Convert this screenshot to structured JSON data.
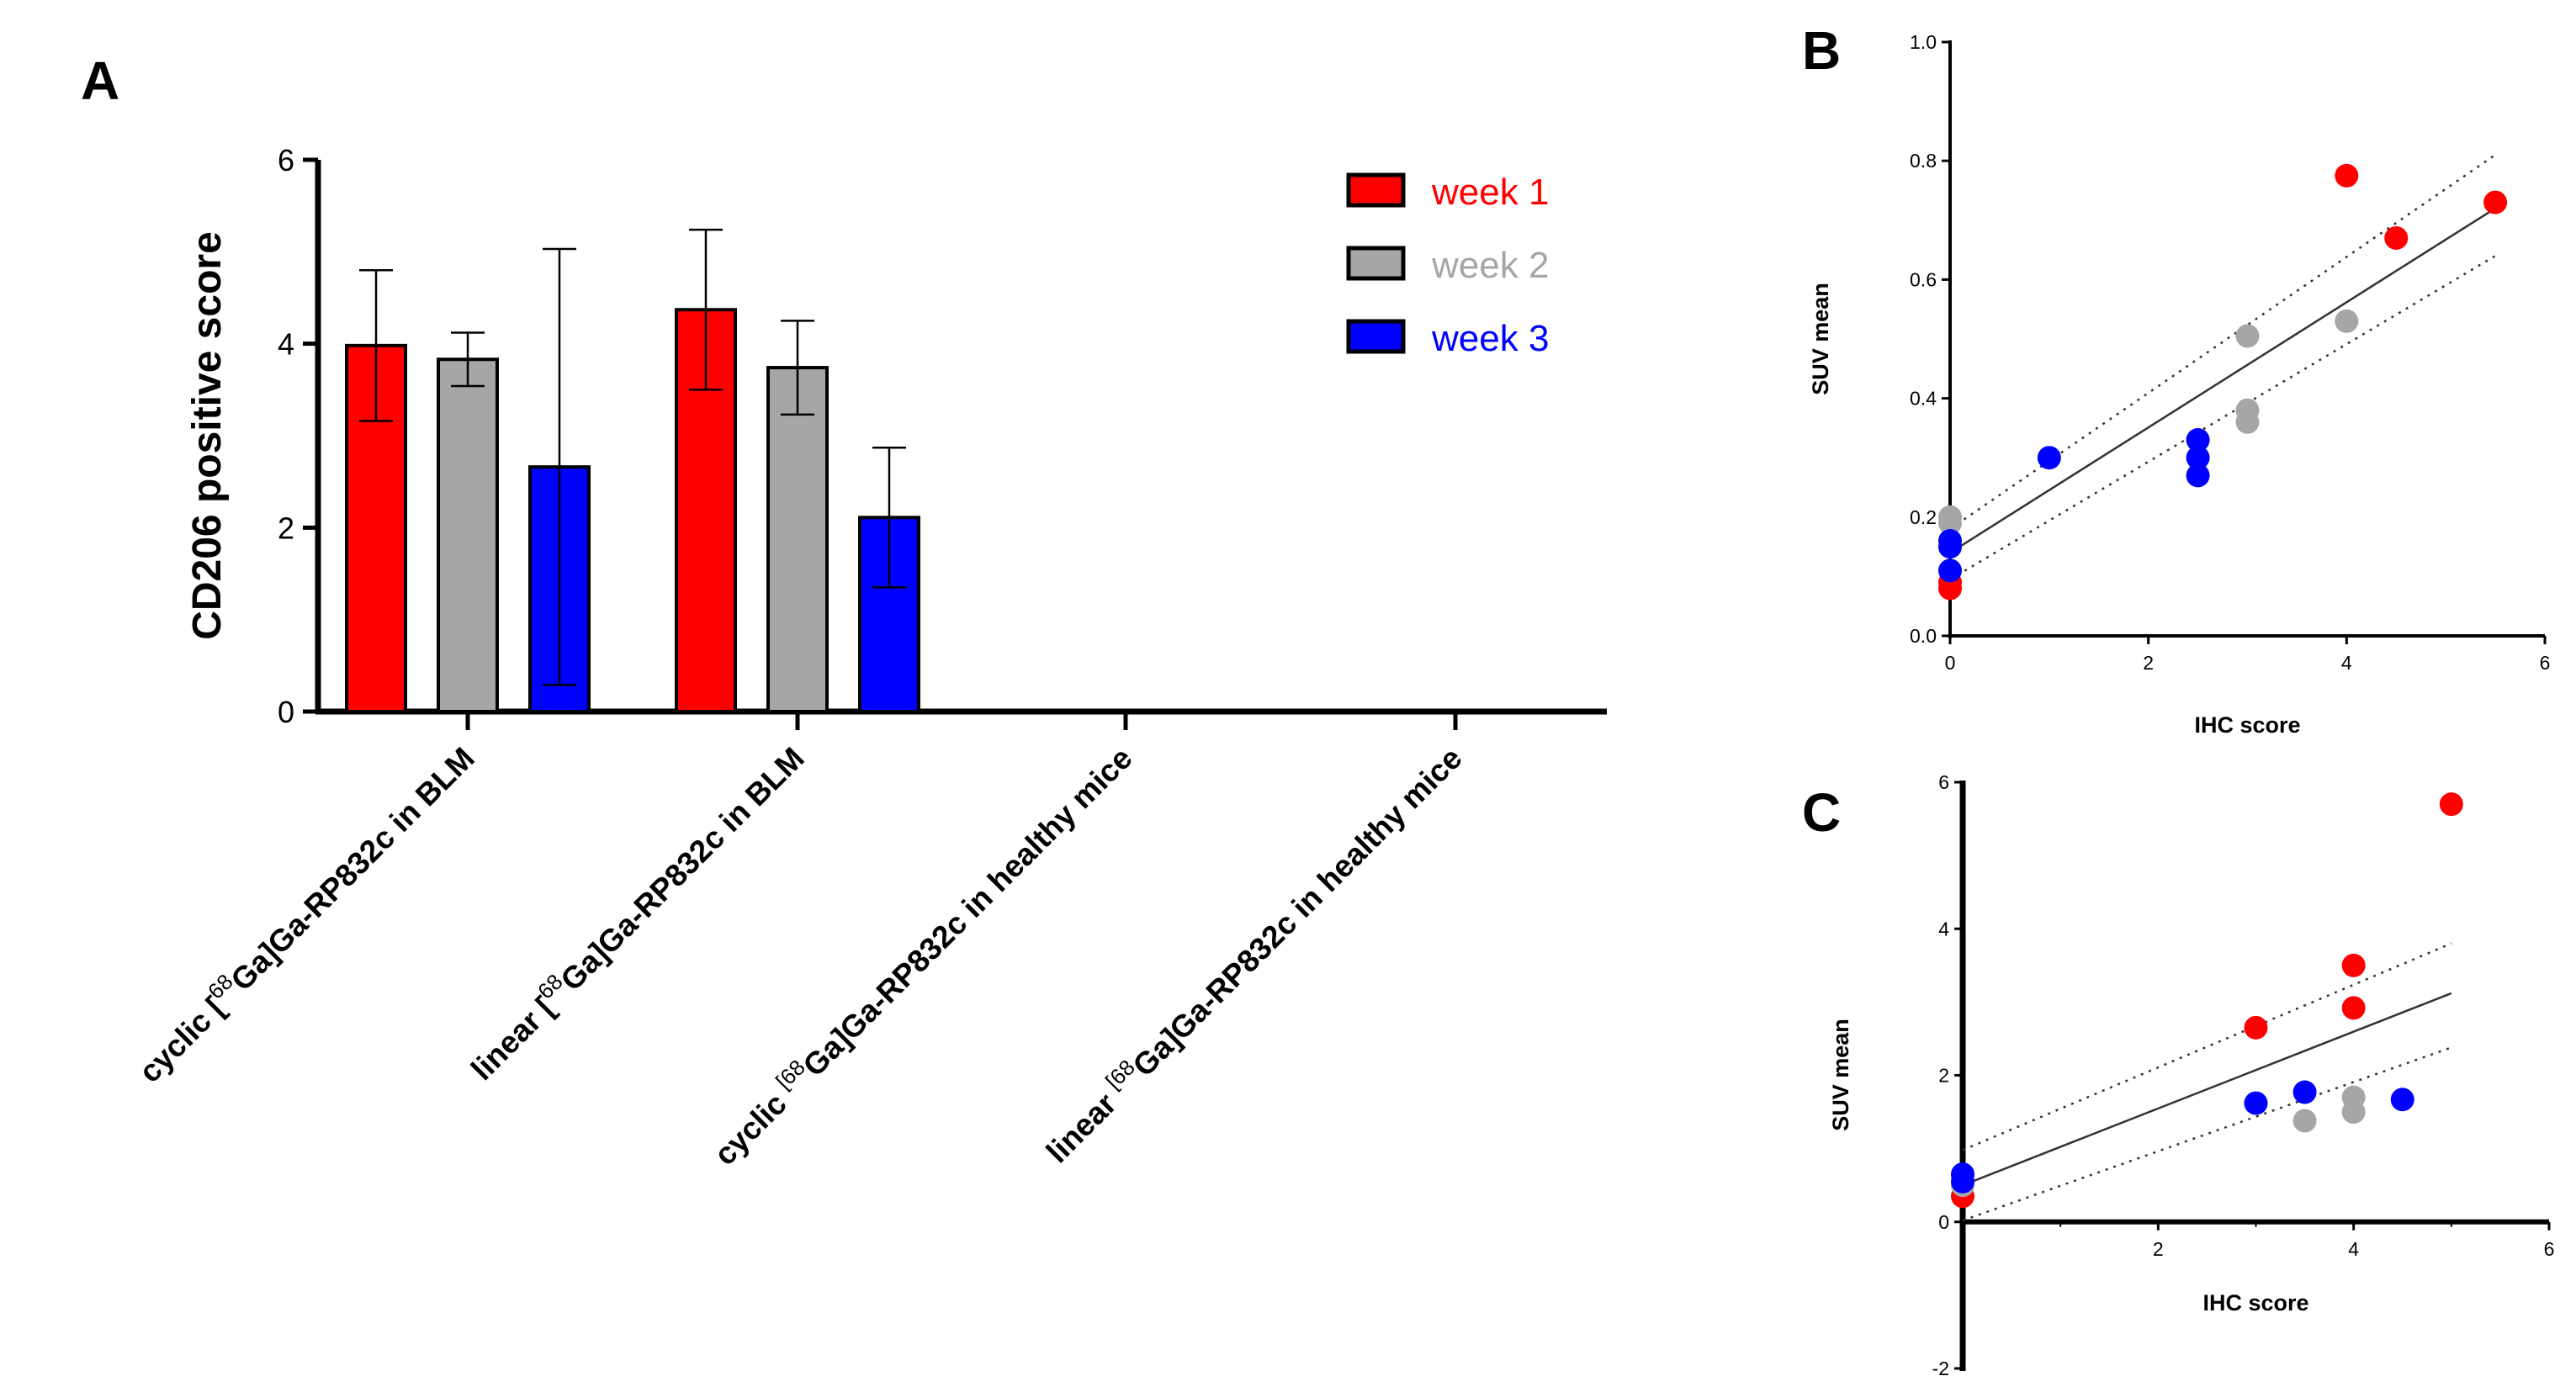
{
  "panel_labels": {
    "a": "A",
    "b": "B",
    "c": "C"
  },
  "chart_data": [
    {
      "type": "bar",
      "panel": "A",
      "ylabel": "CD206 positive score",
      "ylim": [
        0,
        6
      ],
      "yticks": [
        "0",
        "2",
        "4",
        "6"
      ],
      "categories": [
        {
          "prefix": "cyclic  [",
          "sup": "68",
          "suffix": "Ga]Ga-RP832c in BLM"
        },
        {
          "prefix": "linear [",
          "sup": "68",
          "suffix": "Ga]Ga-RP832c in BLM"
        },
        {
          "prefix": "cyclic ",
          "sup": "[68",
          "suffix": "Ga]Ga-RP832c in healthy mice"
        },
        {
          "prefix": "linear ",
          "sup": "[68",
          "suffix": "Ga]Ga-RP832c in healthy mice"
        }
      ],
      "series": [
        {
          "name": "week 1",
          "color": "#ff0000",
          "values": [
            3.98,
            4.37,
            0,
            0
          ],
          "errors": [
            0.82,
            0.87,
            0,
            0
          ]
        },
        {
          "name": "week 2",
          "color": "#a6a6a6",
          "values": [
            3.83,
            3.74,
            0,
            0
          ],
          "errors": [
            0.29,
            0.51,
            0,
            0
          ]
        },
        {
          "name": "week 3",
          "color": "#0000ff",
          "values": [
            2.66,
            2.11,
            0,
            0
          ],
          "errors": [
            2.37,
            0.76,
            0,
            0
          ]
        }
      ],
      "legend_position": "top-right",
      "grid": false
    },
    {
      "type": "scatter",
      "panel": "B",
      "xlabel": "IHC score",
      "ylabel": "SUV mean",
      "xlim": [
        0,
        6
      ],
      "ylim": [
        0,
        1.0
      ],
      "xticks": [
        "0",
        "2",
        "4",
        "6"
      ],
      "yticks": [
        "0.0",
        "0.2",
        "0.4",
        "0.6",
        "0.8",
        "1.0"
      ],
      "series": [
        {
          "name": "week 1",
          "color": "#ff0000",
          "points": [
            [
              0,
              0.08
            ],
            [
              0,
              0.09
            ],
            [
              4.0,
              0.775
            ],
            [
              4.5,
              0.67
            ],
            [
              5.5,
              0.73
            ]
          ]
        },
        {
          "name": "week 2",
          "color": "#a6a6a6",
          "points": [
            [
              0,
              0.19
            ],
            [
              0,
              0.2
            ],
            [
              3.0,
              0.505
            ],
            [
              3.0,
              0.38
            ],
            [
              3.0,
              0.36
            ],
            [
              4.0,
              0.53
            ]
          ]
        },
        {
          "name": "week 3",
          "color": "#0000ff",
          "points": [
            [
              0,
              0.16
            ],
            [
              0,
              0.15
            ],
            [
              0,
              0.11
            ],
            [
              1.0,
              0.3
            ],
            [
              2.5,
              0.33
            ],
            [
              2.5,
              0.3
            ],
            [
              2.5,
              0.27
            ]
          ]
        }
      ],
      "fit_line": {
        "x": [
          0,
          5.5
        ],
        "y": [
          0.14,
          0.72
        ]
      },
      "ci_upper": {
        "x": [
          0,
          5.5
        ],
        "y": [
          0.18,
          0.81
        ]
      },
      "ci_lower": {
        "x": [
          0,
          5.5
        ],
        "y": [
          0.095,
          0.64
        ]
      },
      "grid": false
    },
    {
      "type": "scatter",
      "panel": "C",
      "xlabel": "IHC score",
      "ylabel": "SUV mean",
      "xlim": [
        0,
        6
      ],
      "ylim": [
        -2,
        6
      ],
      "xticks": [
        "2",
        "4",
        "6"
      ],
      "yticks": [
        "-2",
        "0",
        "2",
        "4",
        "6"
      ],
      "series": [
        {
          "name": "week 1",
          "color": "#ff0000",
          "points": [
            [
              0,
              0.35
            ],
            [
              3.0,
              2.65
            ],
            [
              4.0,
              3.5
            ],
            [
              4.0,
              2.92
            ],
            [
              5.0,
              5.7
            ]
          ]
        },
        {
          "name": "week 2",
          "color": "#a6a6a6",
          "points": [
            [
              0,
              0.5
            ],
            [
              3.5,
              1.38
            ],
            [
              4.0,
              1.7
            ],
            [
              4.0,
              1.5
            ]
          ]
        },
        {
          "name": "week 3",
          "color": "#0000ff",
          "points": [
            [
              0,
              0.55
            ],
            [
              0,
              0.65
            ],
            [
              3.0,
              1.62
            ],
            [
              3.5,
              1.77
            ],
            [
              4.5,
              1.67
            ]
          ]
        }
      ],
      "fit_line": {
        "x": [
          0,
          5.0
        ],
        "y": [
          0.5,
          3.12
        ]
      },
      "ci_upper": {
        "x": [
          0,
          5.0
        ],
        "y": [
          0.98,
          3.8
        ]
      },
      "ci_lower": {
        "x": [
          0,
          5.0
        ],
        "y": [
          0.02,
          2.38
        ]
      },
      "grid": false
    }
  ]
}
